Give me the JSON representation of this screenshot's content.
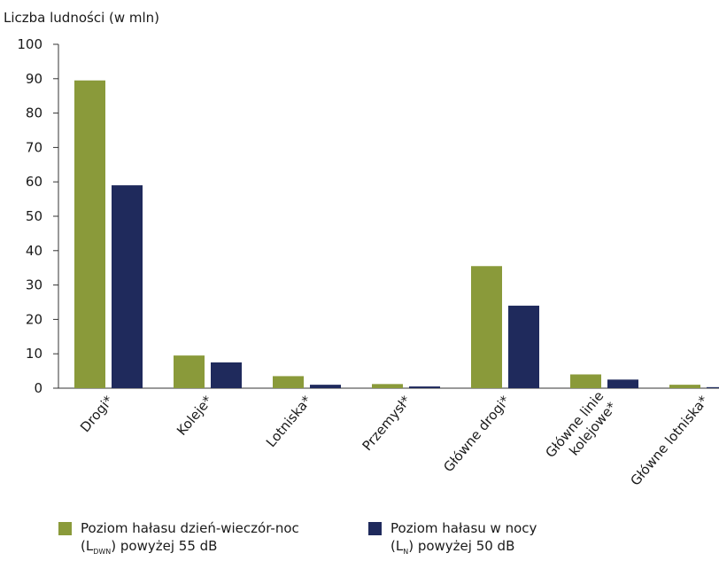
{
  "chart_data": {
    "type": "bar",
    "ylabel": "Liczba ludności (w mln)",
    "ylim": [
      0,
      100
    ],
    "yticks": [
      0,
      10,
      20,
      30,
      40,
      50,
      60,
      70,
      80,
      90,
      100
    ],
    "categories": [
      [
        "Drogi*"
      ],
      [
        "Koleje*"
      ],
      [
        "Lotniska*"
      ],
      [
        "Przemysł*"
      ],
      [
        "Główne drogi*"
      ],
      [
        "Główne linie",
        "kolejowe*"
      ],
      [
        "Główne lotniska*"
      ]
    ],
    "series": [
      {
        "name_main": "Poziom hałasu dzień-wieczór-noc",
        "name_prefix": "(L",
        "name_sub": "DWN",
        "name_suffix": ") powyżej 55 dB",
        "color": "#8a9a3a",
        "values": [
          89.5,
          9.5,
          3.5,
          1.2,
          35.5,
          4.0,
          1.0
        ]
      },
      {
        "name_main": "Poziom hałasu w nocy",
        "name_prefix": "(L",
        "name_sub": "N",
        "name_suffix": ") powyżej 50 dB",
        "color": "#1f2a5c",
        "values": [
          59.0,
          7.5,
          1.0,
          0.5,
          24.0,
          2.5,
          0.3
        ]
      }
    ]
  }
}
